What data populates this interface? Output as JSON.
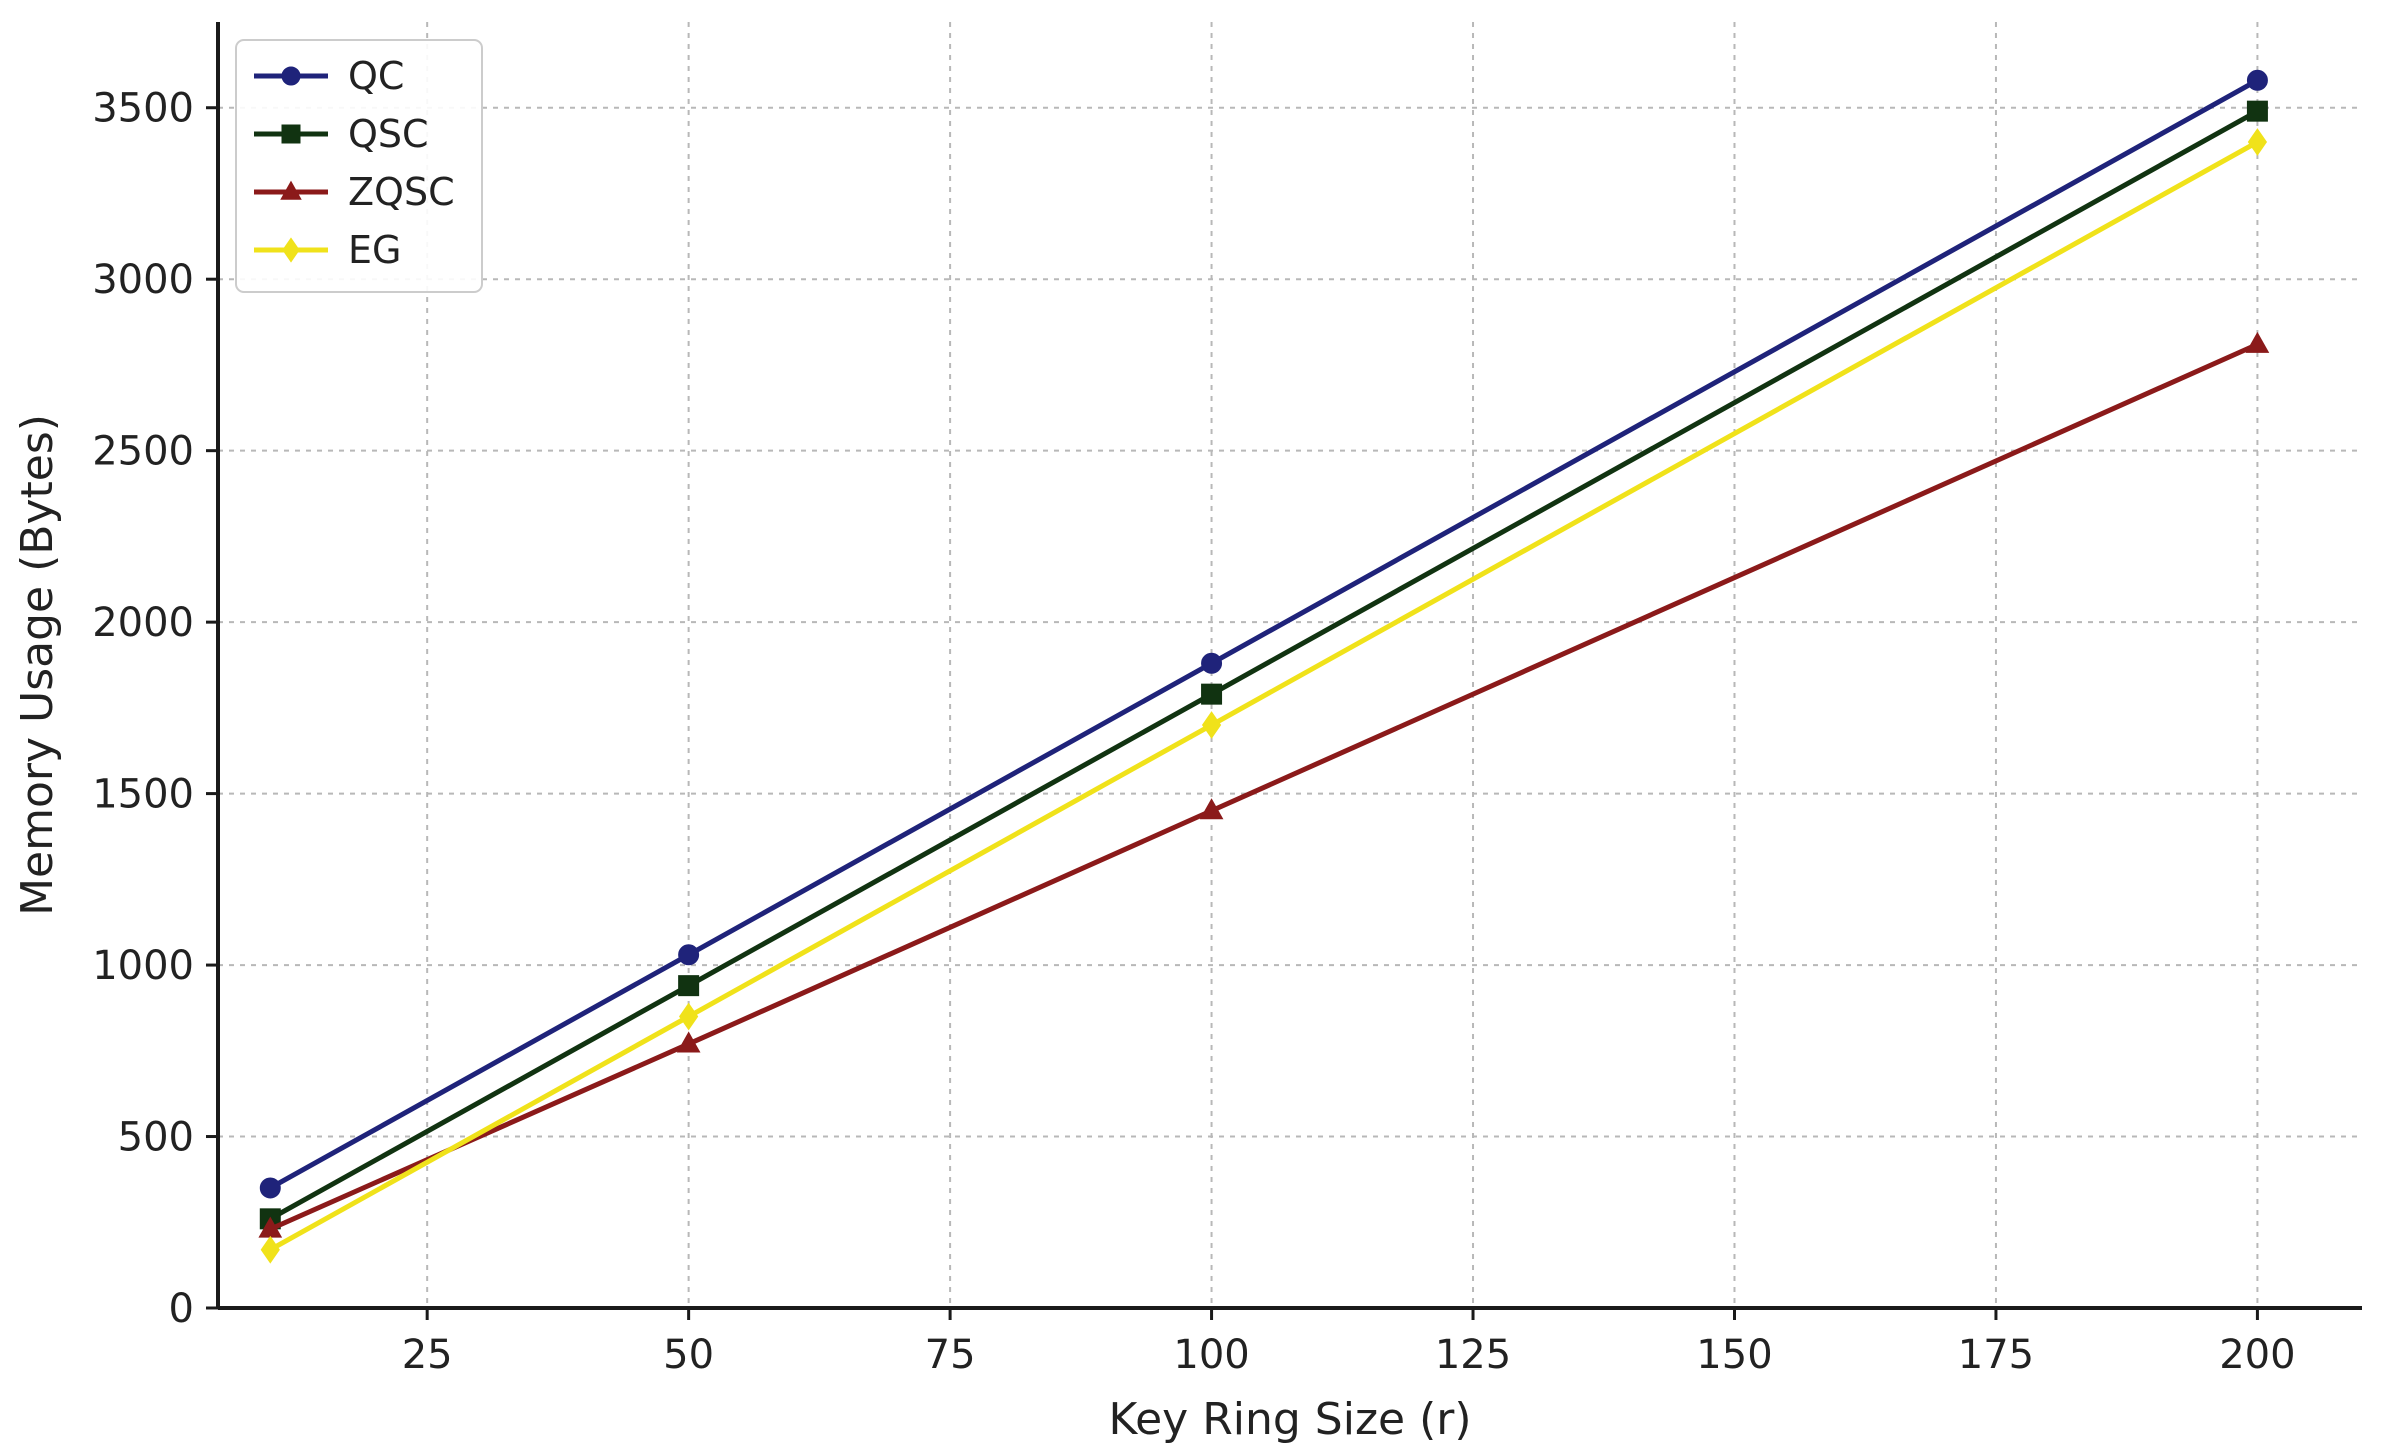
{
  "chart_data": {
    "type": "line",
    "title": "",
    "xlabel": "Key Ring Size (r)",
    "ylabel": "Memory Usage (Bytes)",
    "x": [
      10,
      50,
      100,
      200
    ],
    "xlim": [
      5,
      210
    ],
    "ylim": [
      0,
      3750
    ],
    "xticks": [
      25,
      50,
      75,
      100,
      125,
      150,
      175,
      200
    ],
    "yticks": [
      0,
      500,
      1000,
      1500,
      2000,
      2500,
      3000,
      3500
    ],
    "grid": true,
    "legend_position": "top-left",
    "series": [
      {
        "name": "QC",
        "color": "#1f237a",
        "marker": "circle",
        "values": [
          350,
          1030,
          1880,
          3580
        ]
      },
      {
        "name": "QSC",
        "color": "#113311",
        "marker": "square",
        "values": [
          260,
          940,
          1790,
          3490
        ]
      },
      {
        "name": "ZQSC",
        "color": "#8b1a1a",
        "marker": "triangle",
        "values": [
          230,
          770,
          1450,
          2810
        ]
      },
      {
        "name": "EG",
        "color": "#f0e21a",
        "marker": "diamond",
        "values": [
          170,
          850,
          1700,
          3400
        ]
      }
    ]
  }
}
